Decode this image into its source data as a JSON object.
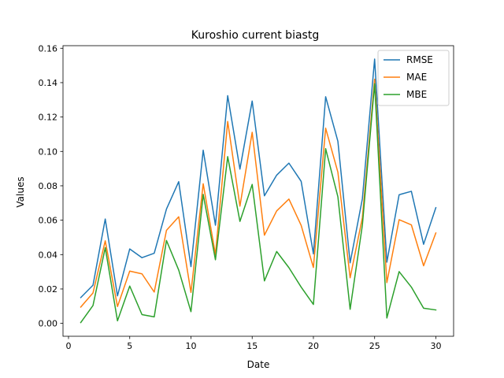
{
  "chart_data": {
    "type": "line",
    "title": "Kuroshio current biastg",
    "xlabel": "Date",
    "ylabel": "Values",
    "xlim": [
      -0.45,
      31.45
    ],
    "ylim": [
      -0.0075,
      0.1615
    ],
    "x_ticks": [
      0,
      5,
      10,
      15,
      20,
      25,
      30
    ],
    "y_ticks": [
      0.0,
      0.02,
      0.04,
      0.06,
      0.08,
      0.1,
      0.12,
      0.14,
      0.16
    ],
    "y_tick_labels": [
      "0.00",
      "0.02",
      "0.04",
      "0.06",
      "0.08",
      "0.10",
      "0.12",
      "0.14",
      "0.16"
    ],
    "grid": false,
    "legend_position": "top-right",
    "x": [
      1,
      2,
      3,
      4,
      5,
      6,
      7,
      8,
      9,
      10,
      11,
      12,
      13,
      14,
      15,
      16,
      17,
      18,
      19,
      20,
      21,
      22,
      23,
      24,
      25,
      26,
      27,
      28,
      29,
      30
    ],
    "series": [
      {
        "name": "RMSE",
        "color": "#1f77b4",
        "values": [
          0.015,
          0.0222,
          0.0607,
          0.016,
          0.0433,
          0.0382,
          0.0408,
          0.0665,
          0.0824,
          0.033,
          0.1007,
          0.0571,
          0.1324,
          0.0897,
          0.1293,
          0.0742,
          0.0862,
          0.0932,
          0.0826,
          0.0404,
          0.1318,
          0.1059,
          0.0352,
          0.0725,
          0.1537,
          0.0356,
          0.0748,
          0.0768,
          0.046,
          0.0673
        ]
      },
      {
        "name": "MAE",
        "color": "#ff7f0e",
        "values": [
          0.0095,
          0.0177,
          0.048,
          0.0098,
          0.0304,
          0.0288,
          0.0182,
          0.0541,
          0.062,
          0.018,
          0.0812,
          0.04,
          0.1174,
          0.0682,
          0.1111,
          0.0513,
          0.0654,
          0.0723,
          0.057,
          0.0325,
          0.1135,
          0.0879,
          0.0265,
          0.0615,
          0.142,
          0.0237,
          0.0603,
          0.0573,
          0.0335,
          0.0526
        ]
      },
      {
        "name": "MBE",
        "color": "#2ca02c",
        "values": [
          0.0005,
          0.0104,
          0.044,
          0.0015,
          0.0217,
          0.0051,
          0.0038,
          0.0482,
          0.031,
          0.0068,
          0.075,
          0.037,
          0.097,
          0.0593,
          0.0808,
          0.0247,
          0.0418,
          0.0324,
          0.0211,
          0.011,
          0.1016,
          0.0736,
          0.0082,
          0.0571,
          0.1394,
          0.0031,
          0.0301,
          0.0211,
          0.0088,
          0.0078
        ]
      }
    ]
  }
}
